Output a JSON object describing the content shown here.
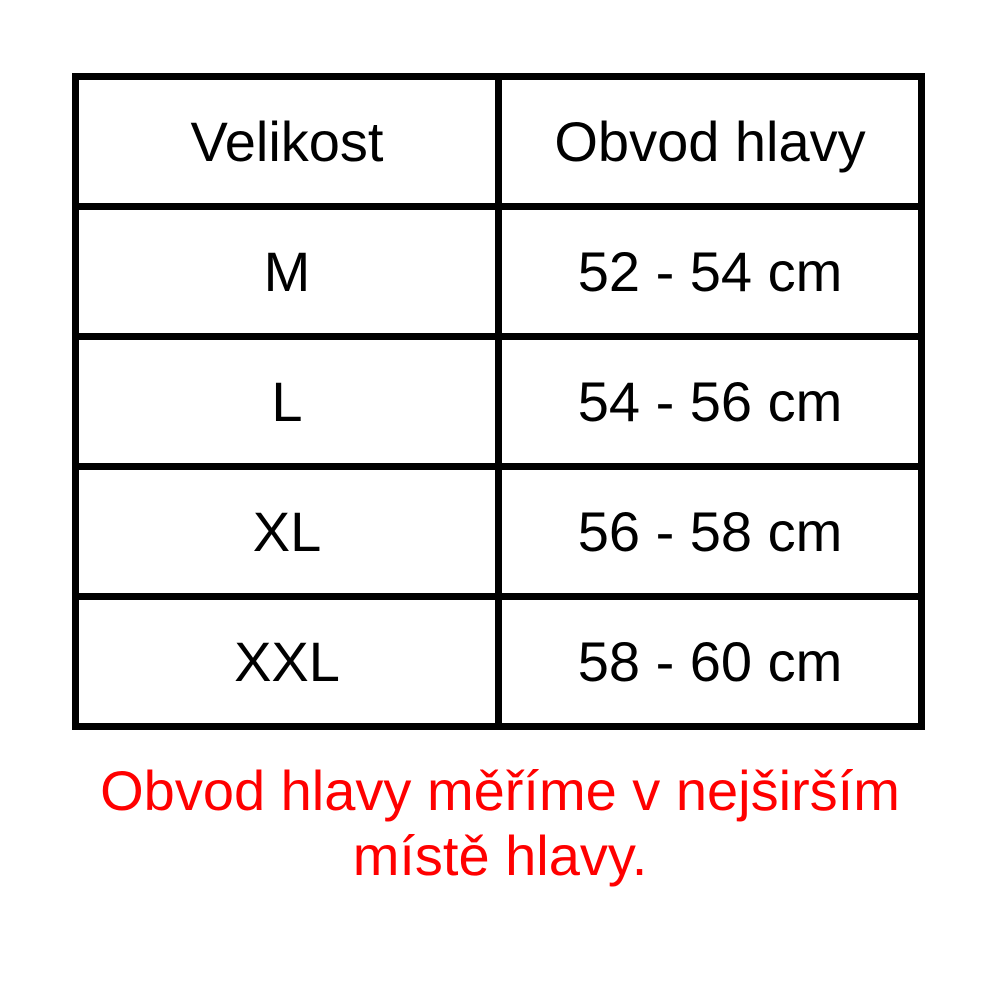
{
  "chart_data": {
    "type": "table",
    "columns": [
      "Velikost",
      "Obvod hlavy"
    ],
    "rows": [
      [
        "M",
        "52 - 54 cm"
      ],
      [
        "L",
        "54 - 56 cm"
      ],
      [
        "XL",
        "56 - 58 cm"
      ],
      [
        "XXL",
        "58 - 60 cm"
      ]
    ],
    "note": "Obvod hlavy měříme v nejširším místě hlavy."
  },
  "note": {
    "text": "Obvod hlavy měříme v nejširším místě hlavy."
  },
  "colors": {
    "background": "#ffffff",
    "border": "#000000",
    "text": "#000000",
    "note": "#ff0000"
  }
}
